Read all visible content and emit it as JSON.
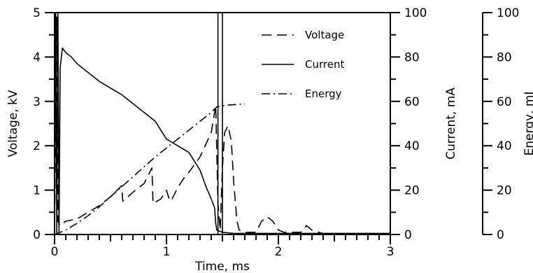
{
  "chart_data": {
    "type": "line",
    "xlabel": "Time, ms",
    "ylabel_left": "Voltage, kV",
    "ylabel_right1": "Current, mA",
    "ylabel_right2": "Energy, mJ",
    "xlim": [
      0,
      3
    ],
    "ylim_voltage": [
      0,
      5
    ],
    "ylim_current": [
      0,
      100
    ],
    "ylim_energy": [
      0,
      100
    ],
    "x_ticks": [
      "0",
      "1",
      "2",
      "3"
    ],
    "voltage_ticks": [
      "0",
      "1",
      "2",
      "3",
      "4",
      "5"
    ],
    "current_ticks": [
      "0",
      "20",
      "40",
      "60",
      "80",
      "100"
    ],
    "energy_ticks": [
      "0",
      "20",
      "40",
      "60",
      "80",
      "100"
    ],
    "legend": [
      {
        "label": "Voltage",
        "style": "dashed"
      },
      {
        "label": "Current",
        "style": "solid"
      },
      {
        "label": "Energy",
        "style": "dash-dot"
      }
    ],
    "grid": false,
    "series": [
      {
        "name": "Voltage",
        "axis": "voltage",
        "style": "dashed",
        "x": [
          0,
          0.02,
          0.03,
          0.05,
          0.1,
          0.2,
          0.3,
          0.4,
          0.5,
          0.6,
          0.61,
          0.7,
          0.75,
          0.8,
          0.87,
          0.88,
          0.95,
          1.0,
          1.03,
          1.05,
          1.1,
          1.15,
          1.2,
          1.3,
          1.4,
          1.44,
          1.46,
          1.48,
          1.5,
          1.52,
          1.55,
          1.58,
          1.6,
          1.63,
          1.65,
          1.7,
          1.8,
          1.85,
          1.9,
          1.95,
          2.0,
          2.05,
          2.2,
          2.25,
          2.3,
          2.4,
          2.6,
          2.8,
          3.0
        ],
        "values": [
          0,
          4.9,
          0.3,
          0.2,
          0.3,
          0.35,
          0.5,
          0.65,
          0.85,
          1.1,
          0.75,
          0.95,
          1.05,
          1.15,
          1.5,
          0.7,
          0.8,
          1.0,
          0.75,
          0.8,
          1.05,
          1.25,
          1.4,
          1.75,
          2.3,
          2.9,
          0.7,
          0.1,
          1.5,
          2.3,
          2.45,
          2.1,
          1.2,
          0.3,
          0.1,
          0.05,
          0.05,
          0.3,
          0.4,
          0.3,
          0.1,
          0.05,
          0.05,
          0.2,
          0.1,
          0.02,
          0.02,
          0.02,
          0.02
        ]
      },
      {
        "name": "Current",
        "axis": "current",
        "style": "solid",
        "x": [
          0,
          0.01,
          0.02,
          0.03,
          0.04,
          0.05,
          0.07,
          0.1,
          0.15,
          0.2,
          0.3,
          0.4,
          0.5,
          0.6,
          0.7,
          0.8,
          0.9,
          1.0,
          1.1,
          1.2,
          1.3,
          1.35,
          1.4,
          1.43,
          1.44,
          1.45,
          1.5,
          1.6,
          1.8,
          2.0,
          2.2,
          2.5,
          2.8,
          3.0
        ],
        "values": [
          0,
          100,
          0,
          100,
          0,
          75,
          84,
          82,
          80,
          77,
          73,
          69,
          66,
          63,
          59,
          55,
          51,
          43,
          40,
          37,
          29,
          22,
          16,
          12,
          5,
          2,
          1,
          0.5,
          0.5,
          0.5,
          0.5,
          0.5,
          0.5,
          0.5
        ]
      },
      {
        "name": "Energy",
        "axis": "energy",
        "style": "dash-dot",
        "x": [
          0,
          0.1,
          0.2,
          0.3,
          0.4,
          0.5,
          0.6,
          0.7,
          0.8,
          0.9,
          1.0,
          1.1,
          1.2,
          1.3,
          1.4,
          1.45,
          1.5,
          1.55,
          1.6,
          1.65,
          1.7
        ],
        "values": [
          0,
          2,
          5,
          8.5,
          12.5,
          17,
          21.5,
          26,
          30.5,
          35,
          39,
          43,
          47,
          51,
          55,
          57.5,
          58,
          58.3,
          58.5,
          58.7,
          58.8
        ]
      }
    ],
    "annotations": [
      {
        "type": "vline",
        "x": 1.46,
        "axis": "current",
        "top": 100
      },
      {
        "type": "vline",
        "x": 1.5,
        "axis": "current",
        "top": 100
      }
    ]
  }
}
